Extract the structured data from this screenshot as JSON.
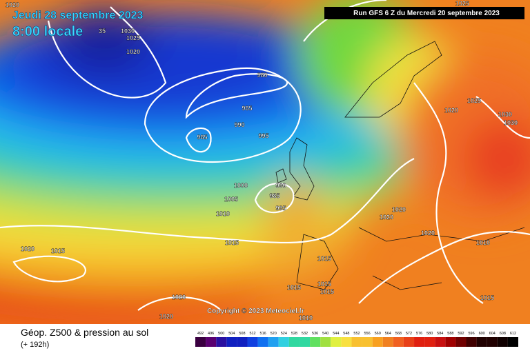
{
  "header": {
    "date": "Jeudi 28 septembre 2023",
    "time": "8:00 locale",
    "run": "Run GFS 6 Z du Mercredi 20 septembre 2023"
  },
  "isobar_labels": [
    "1020",
    "35",
    "1030",
    "1025",
    "1020",
    "980",
    "985",
    "990",
    "995",
    "985",
    "1000",
    "1005",
    "1010",
    "990",
    "985",
    "995",
    "1015",
    "1020",
    "1015",
    "1015",
    "1015",
    "1015",
    "1015",
    "1020",
    "1020",
    "1010",
    "1020",
    "1020",
    "1020",
    "1010",
    "1015",
    "1020",
    "1025",
    "1030",
    "1030",
    "1025"
  ],
  "copyright": "Copyright © 2023 Meteociel.fr",
  "legend": {
    "title": "Géop. Z500 & pression au sol",
    "subtitle": "(+ 192h)",
    "scale": [
      492,
      496,
      500,
      504,
      508,
      512,
      516,
      520,
      524,
      528,
      532,
      536,
      540,
      544,
      548,
      552,
      556,
      560,
      564,
      568,
      572,
      576,
      580,
      584,
      588,
      592,
      596,
      600,
      604,
      608,
      612
    ]
  }
}
